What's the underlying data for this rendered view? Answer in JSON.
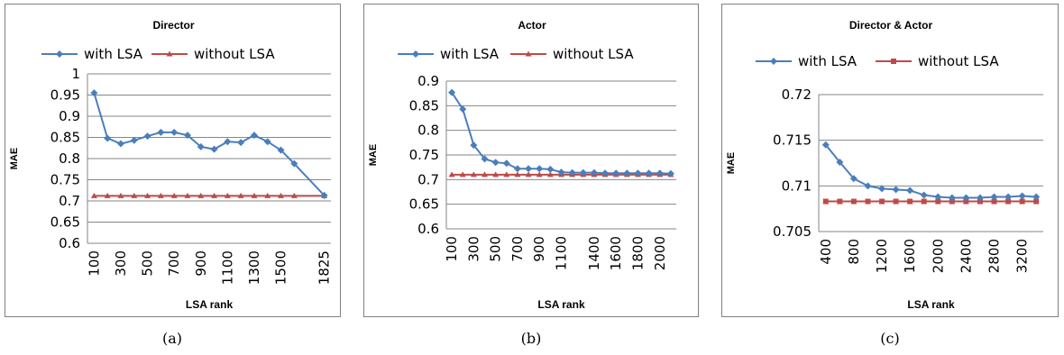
{
  "colors": {
    "with": "#4a7ebb",
    "without": "#be4b48",
    "grid": "#868686",
    "border": "#7f7f7f"
  },
  "chart_data": [
    {
      "type": "line",
      "title": "Director",
      "xlabel": "LSA rank",
      "ylabel": "MAE",
      "ylim": [
        0.6,
        1.0
      ],
      "yticks": [
        "0.6",
        "0.65",
        "0.7",
        "0.75",
        "0.8",
        "0.85",
        "0.9",
        "0.95",
        "1"
      ],
      "xticks": [
        "100",
        "300",
        "500",
        "700",
        "900",
        "1100",
        "1300",
        "1500",
        "1825"
      ],
      "legend": "top",
      "series": [
        {
          "name": "with LSA",
          "marker": "diamond",
          "x": [
            100,
            200,
            300,
            400,
            500,
            600,
            700,
            800,
            900,
            1000,
            1100,
            1200,
            1300,
            1400,
            1500,
            1600,
            1825
          ],
          "values": [
            0.955,
            0.848,
            0.835,
            0.843,
            0.853,
            0.862,
            0.862,
            0.855,
            0.828,
            0.822,
            0.84,
            0.838,
            0.855,
            0.84,
            0.82,
            0.788,
            0.713
          ]
        },
        {
          "name": "without LSA",
          "marker": "triangle",
          "x": [
            100,
            200,
            300,
            400,
            500,
            600,
            700,
            800,
            900,
            1000,
            1100,
            1200,
            1300,
            1400,
            1500,
            1600,
            1825
          ],
          "values": [
            0.712,
            0.712,
            0.712,
            0.712,
            0.712,
            0.712,
            0.712,
            0.712,
            0.712,
            0.712,
            0.712,
            0.712,
            0.712,
            0.712,
            0.712,
            0.712,
            0.712
          ]
        }
      ],
      "caption": "(a)"
    },
    {
      "type": "line",
      "title": "Actor",
      "xlabel": "LSA rank",
      "ylabel": "MAE",
      "ylim": [
        0.6,
        0.9
      ],
      "yticks": [
        "0.6",
        "0.65",
        "0.7",
        "0.75",
        "0.8",
        "0.85",
        "0.9"
      ],
      "xticks": [
        "100",
        "300",
        "500",
        "700",
        "900",
        "1100",
        "1400",
        "1600",
        "1800",
        "2000"
      ],
      "legend": "top",
      "series": [
        {
          "name": "with LSA",
          "marker": "diamond",
          "x": [
            100,
            200,
            300,
            400,
            500,
            600,
            700,
            800,
            900,
            1000,
            1100,
            1200,
            1300,
            1400,
            1500,
            1600,
            1700,
            1800,
            1900,
            2000,
            2100
          ],
          "values": [
            0.877,
            0.843,
            0.77,
            0.742,
            0.735,
            0.733,
            0.722,
            0.722,
            0.722,
            0.721,
            0.715,
            0.714,
            0.714,
            0.714,
            0.713,
            0.713,
            0.713,
            0.713,
            0.713,
            0.713,
            0.712
          ]
        },
        {
          "name": "without LSA",
          "marker": "triangle",
          "x": [
            100,
            200,
            300,
            400,
            500,
            600,
            700,
            800,
            900,
            1000,
            1100,
            1200,
            1300,
            1400,
            1500,
            1600,
            1700,
            1800,
            1900,
            2000,
            2100
          ],
          "values": [
            0.71,
            0.71,
            0.71,
            0.71,
            0.71,
            0.71,
            0.71,
            0.71,
            0.71,
            0.71,
            0.71,
            0.71,
            0.71,
            0.71,
            0.71,
            0.71,
            0.71,
            0.71,
            0.71,
            0.71,
            0.71
          ]
        }
      ],
      "caption": "(b)"
    },
    {
      "type": "line",
      "title": "Director & Actor",
      "xlabel": "LSA rank",
      "ylabel": "MAE",
      "ylim": [
        0.705,
        0.72
      ],
      "yticks": [
        "0.705",
        "0.71",
        "0.715",
        "0.72"
      ],
      "xticks": [
        "400",
        "800",
        "1200",
        "1600",
        "2000",
        "2400",
        "2800",
        "3200"
      ],
      "legend": "top",
      "series": [
        {
          "name": "with LSA",
          "marker": "diamond",
          "x": [
            400,
            600,
            800,
            1000,
            1200,
            1400,
            1600,
            1800,
            2000,
            2200,
            2400,
            2600,
            2800,
            3000,
            3200,
            3400
          ],
          "values": [
            0.7145,
            0.7126,
            0.7108,
            0.71,
            0.7097,
            0.7096,
            0.7095,
            0.709,
            0.7088,
            0.7087,
            0.7087,
            0.7087,
            0.7088,
            0.7088,
            0.7089,
            0.7088
          ]
        },
        {
          "name": "without LSA",
          "marker": "square",
          "x": [
            400,
            600,
            800,
            1000,
            1200,
            1400,
            1600,
            1800,
            2000,
            2200,
            2400,
            2600,
            2800,
            3000,
            3200,
            3400
          ],
          "values": [
            0.7083,
            0.7083,
            0.7083,
            0.7083,
            0.7083,
            0.7083,
            0.7083,
            0.7083,
            0.7083,
            0.7083,
            0.7083,
            0.7083,
            0.7083,
            0.7083,
            0.7083,
            0.7083
          ]
        }
      ],
      "caption": "(c)"
    }
  ]
}
